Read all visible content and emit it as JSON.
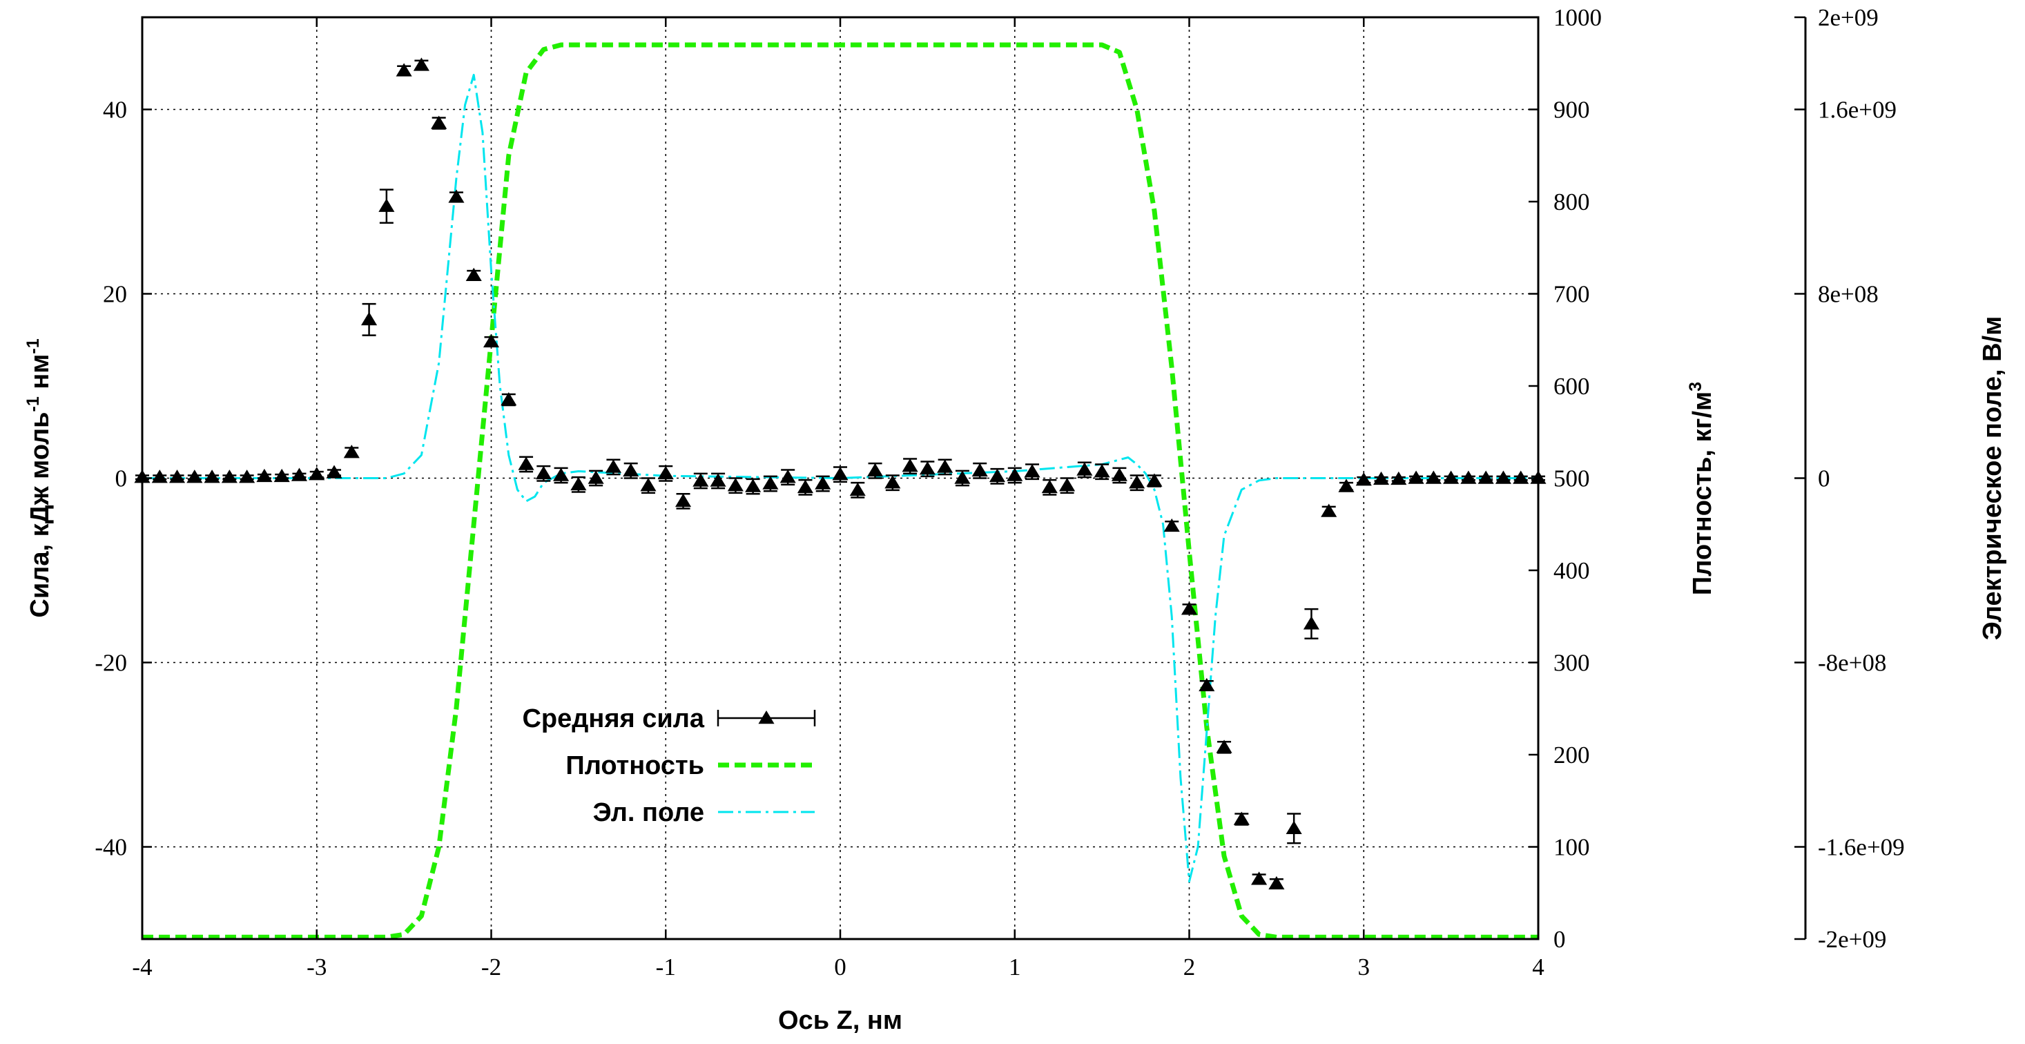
{
  "chart_data": {
    "type": "line",
    "xlabel": "Ось Z, нм",
    "ylabel_left": "Сила, кДж моль",
    "ylabel_left_sup1": "-1",
    "ylabel_left_mid": " нм",
    "ylabel_left_sup2": "-1",
    "ylabel_right1": "Плотность, кг/м",
    "ylabel_right1_sup": "3",
    "ylabel_right2": "Электрическое поле, В/м",
    "xlim": [
      -4,
      4
    ],
    "ylim_left": [
      -50,
      50
    ],
    "ylim_right1": [
      0,
      1000
    ],
    "ylim_right2": [
      -2000000000,
      2000000000
    ],
    "x_ticks": [
      "-4",
      "-3",
      "-2",
      "-1",
      "0",
      "1",
      "2",
      "3",
      "4"
    ],
    "y_left_ticks": [
      "-40",
      "-20",
      "0",
      "20",
      "40"
    ],
    "y_right1_ticks": [
      "0",
      "100",
      "200",
      "300",
      "400",
      "500",
      "600",
      "700",
      "800",
      "900",
      "1000"
    ],
    "y_right2_ticks": [
      "-2e+09",
      "-1.6e+09",
      "-8e+08",
      "0",
      "8e+08",
      "1.6e+09",
      "2e+09"
    ],
    "grid": true,
    "legend_position": "bottom-left",
    "series": [
      {
        "name": "Средняя сила",
        "axis": "left",
        "style": "triangles-errorbars",
        "color": "#000000",
        "x": [
          -4.0,
          -3.9,
          -3.8,
          -3.7,
          -3.6,
          -3.5,
          -3.4,
          -3.3,
          -3.2,
          -3.1,
          -3.0,
          -2.9,
          -2.8,
          -2.7,
          -2.6,
          -2.5,
          -2.4,
          -2.3,
          -2.2,
          -2.1,
          -2.0,
          -1.9,
          -1.8,
          -1.7,
          -1.6,
          -1.5,
          -1.4,
          -1.3,
          -1.2,
          -1.1,
          -1.0,
          -0.9,
          -0.8,
          -0.7,
          -0.6,
          -0.5,
          -0.4,
          -0.3,
          -0.2,
          -0.1,
          0.0,
          0.1,
          0.2,
          0.3,
          0.4,
          0.5,
          0.6,
          0.7,
          0.8,
          0.9,
          1.0,
          1.1,
          1.2,
          1.3,
          1.4,
          1.5,
          1.6,
          1.7,
          1.8,
          1.9,
          2.0,
          2.1,
          2.2,
          2.3,
          2.4,
          2.5,
          2.6,
          2.7,
          2.8,
          2.9,
          3.0,
          3.1,
          3.2,
          3.3,
          3.4,
          3.5,
          3.6,
          3.7,
          3.8,
          3.9,
          4.0
        ],
        "y": [
          0.1,
          0.1,
          0.1,
          0.1,
          0.1,
          0.1,
          0.1,
          0.2,
          0.2,
          0.3,
          0.4,
          0.6,
          2.8,
          17.2,
          29.5,
          44.2,
          44.8,
          38.5,
          30.5,
          22.0,
          14.8,
          8.5,
          1.5,
          0.5,
          0.3,
          -0.7,
          0.0,
          1.2,
          0.8,
          -0.8,
          0.5,
          -2.5,
          -0.3,
          -0.3,
          -0.8,
          -0.9,
          -0.6,
          0.1,
          -1.0,
          -0.6,
          0.4,
          -1.3,
          0.8,
          -0.5,
          1.3,
          1.0,
          1.2,
          0.0,
          0.8,
          0.2,
          0.3,
          0.7,
          -1.0,
          -0.8,
          0.9,
          0.7,
          0.3,
          -0.5,
          -0.3,
          -5.2,
          -14.2,
          -22.5,
          -29.2,
          -37.0,
          -43.5,
          -44.0,
          -38.0,
          -15.8,
          -3.6,
          -0.9,
          -0.2,
          -0.1,
          -0.1,
          0.0,
          0.0,
          0.0,
          0.0,
          0.0,
          0.0,
          0.0,
          0.0
        ],
        "err": [
          0.2,
          0.2,
          0.2,
          0.2,
          0.2,
          0.2,
          0.2,
          0.2,
          0.2,
          0.2,
          0.3,
          0.3,
          0.5,
          1.7,
          1.8,
          0.5,
          0.5,
          0.6,
          0.5,
          0.5,
          0.5,
          0.6,
          0.8,
          0.8,
          0.8,
          0.8,
          0.8,
          0.8,
          0.8,
          0.8,
          0.8,
          0.8,
          0.8,
          0.8,
          0.8,
          0.8,
          0.8,
          0.8,
          0.8,
          0.8,
          0.8,
          0.8,
          0.8,
          0.8,
          0.8,
          0.8,
          0.8,
          0.8,
          0.8,
          0.8,
          0.8,
          0.8,
          0.8,
          0.8,
          0.8,
          0.8,
          0.8,
          0.8,
          0.6,
          0.5,
          0.5,
          0.5,
          0.6,
          0.6,
          0.5,
          0.5,
          1.6,
          1.6,
          0.5,
          0.4,
          0.3,
          0.2,
          0.2,
          0.2,
          0.2,
          0.2,
          0.2,
          0.2,
          0.2,
          0.2,
          0.2
        ]
      },
      {
        "name": "Плотность",
        "axis": "right1",
        "style": "dashed",
        "color": "#22ee00",
        "x": [
          -4.0,
          -2.6,
          -2.5,
          -2.4,
          -2.3,
          -2.2,
          -2.1,
          -2.0,
          -1.9,
          -1.8,
          -1.7,
          -1.6,
          -1.5,
          0.0,
          1.4,
          1.5,
          1.6,
          1.7,
          1.8,
          1.9,
          2.0,
          2.1,
          2.2,
          2.3,
          2.4,
          2.5,
          4.0
        ],
        "y": [
          2,
          2,
          5,
          25,
          100,
          250,
          450,
          650,
          850,
          940,
          965,
          970,
          970,
          970,
          970,
          970,
          962,
          900,
          790,
          620,
          420,
          230,
          90,
          25,
          5,
          2,
          2
        ]
      },
      {
        "name": "Эл. поле",
        "axis": "right2",
        "style": "dash-dot",
        "color": "#00e5ee",
        "x": [
          -4.0,
          -2.6,
          -2.5,
          -2.4,
          -2.3,
          -2.2,
          -2.15,
          -2.1,
          -2.05,
          -2.0,
          -1.95,
          -1.9,
          -1.85,
          -1.8,
          -1.75,
          -1.7,
          -1.6,
          -1.5,
          -1.0,
          0.0,
          1.0,
          1.5,
          1.6,
          1.65,
          1.7,
          1.75,
          1.8,
          1.85,
          1.9,
          1.95,
          2.0,
          2.05,
          2.1,
          2.15,
          2.2,
          2.3,
          2.4,
          2.5,
          4.0
        ],
        "y": [
          0,
          0,
          20000000,
          100000000,
          500000000,
          1300000000,
          1620000000,
          1750000000,
          1500000000,
          900000000,
          400000000,
          100000000,
          -50000000,
          -100000000,
          -80000000,
          -20000000,
          20000000,
          30000000,
          10000000,
          0,
          30000000,
          60000000,
          80000000,
          90000000,
          60000000,
          20000000,
          -50000000,
          -200000000,
          -600000000,
          -1300000000,
          -1750000000,
          -1600000000,
          -1100000000,
          -600000000,
          -250000000,
          -50000000,
          -10000000,
          0,
          0
        ]
      }
    ]
  }
}
